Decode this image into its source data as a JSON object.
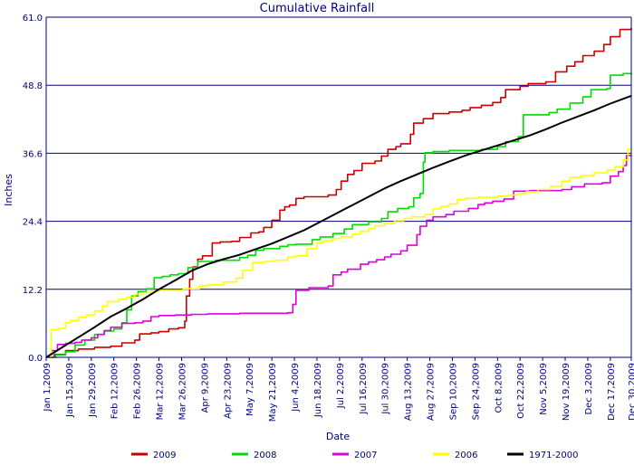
{
  "chart_data": {
    "type": "line",
    "title": "Cumulative Rainfall",
    "xlabel": "Date",
    "ylabel": "Inches",
    "ylim": [
      0,
      61
    ],
    "xlim": [
      0,
      363
    ],
    "y_ticks": [
      "0.0",
      "12.2",
      "24.4",
      "36.6",
      "48.8",
      "61.0"
    ],
    "x_ticks": [
      {
        "day": 0,
        "label": "Jan 1,2009"
      },
      {
        "day": 14,
        "label": "Jan 15,2009"
      },
      {
        "day": 28,
        "label": "Jan 29,2009"
      },
      {
        "day": 42,
        "label": "Feb 12,2009"
      },
      {
        "day": 56,
        "label": "Feb 26,2009"
      },
      {
        "day": 70,
        "label": "Mar 12,2009"
      },
      {
        "day": 84,
        "label": "Mar 26,2009"
      },
      {
        "day": 98,
        "label": "Apr 9,2009"
      },
      {
        "day": 112,
        "label": "Apr 23,2009"
      },
      {
        "day": 126,
        "label": "May 7,2009"
      },
      {
        "day": 140,
        "label": "May 21,2009"
      },
      {
        "day": 154,
        "label": "Jun 4,2009"
      },
      {
        "day": 168,
        "label": "Jun 18,2009"
      },
      {
        "day": 182,
        "label": "Jul 2,2009"
      },
      {
        "day": 196,
        "label": "Jul 16,2009"
      },
      {
        "day": 210,
        "label": "Jul 30,2009"
      },
      {
        "day": 224,
        "label": "Aug 13,2009"
      },
      {
        "day": 238,
        "label": "Aug 27,2009"
      },
      {
        "day": 252,
        "label": "Sep 10,2009"
      },
      {
        "day": 266,
        "label": "Sep 24,2009"
      },
      {
        "day": 280,
        "label": "Oct 8,2009"
      },
      {
        "day": 294,
        "label": "Oct 22,2009"
      },
      {
        "day": 308,
        "label": "Nov 5,2009"
      },
      {
        "day": 322,
        "label": "Nov 19,2009"
      },
      {
        "day": 336,
        "label": "Dec 3,2009"
      },
      {
        "day": 350,
        "label": "Dec 17,2009"
      },
      {
        "day": 363,
        "label": "Dec 30,2009"
      }
    ],
    "grid": "horizontal",
    "legend_position": "bottom",
    "series": [
      {
        "name": "2009",
        "color": "#cc0000",
        "step": true,
        "points": [
          [
            0,
            0
          ],
          [
            5,
            0.5
          ],
          [
            12,
            1.2
          ],
          [
            20,
            1.5
          ],
          [
            30,
            1.8
          ],
          [
            40,
            2.0
          ],
          [
            47,
            2.6
          ],
          [
            55,
            3.1
          ],
          [
            58,
            4.2
          ],
          [
            65,
            4.4
          ],
          [
            70,
            4.6
          ],
          [
            76,
            5.1
          ],
          [
            82,
            5.3
          ],
          [
            86,
            6.5
          ],
          [
            87,
            11
          ],
          [
            89,
            14
          ],
          [
            91,
            16.2
          ],
          [
            94,
            17.6
          ],
          [
            97,
            18.2
          ],
          [
            103,
            20.5
          ],
          [
            108,
            20.7
          ],
          [
            115,
            20.8
          ],
          [
            120,
            21.5
          ],
          [
            127,
            22.3
          ],
          [
            132,
            22.5
          ],
          [
            135,
            23.3
          ],
          [
            140,
            24.6
          ],
          [
            145,
            26.4
          ],
          [
            148,
            27
          ],
          [
            151,
            27.3
          ],
          [
            155,
            28.5
          ],
          [
            160,
            28.8
          ],
          [
            175,
            29.1
          ],
          [
            180,
            30.1
          ],
          [
            183,
            31.6
          ],
          [
            187,
            32.8
          ],
          [
            191,
            33.5
          ],
          [
            196,
            34.8
          ],
          [
            204,
            35.2
          ],
          [
            208,
            36.1
          ],
          [
            212,
            37.3
          ],
          [
            217,
            37.8
          ],
          [
            220,
            38.3
          ],
          [
            226,
            40
          ],
          [
            228,
            42
          ],
          [
            234,
            42.8
          ],
          [
            240,
            43.7
          ],
          [
            250,
            44
          ],
          [
            258,
            44.3
          ],
          [
            263,
            44.8
          ],
          [
            270,
            45.2
          ],
          [
            277,
            45.7
          ],
          [
            282,
            46.6
          ],
          [
            285,
            48
          ],
          [
            294,
            48.6
          ],
          [
            299,
            49.1
          ],
          [
            310,
            49.4
          ],
          [
            316,
            51.2
          ],
          [
            323,
            52.2
          ],
          [
            328,
            53
          ],
          [
            333,
            54.1
          ],
          [
            340,
            54.9
          ],
          [
            346,
            56.1
          ],
          [
            350,
            57.5
          ],
          [
            356,
            58.8
          ],
          [
            363,
            59.1
          ]
        ]
      },
      {
        "name": "2008",
        "color": "#00dd00",
        "step": true,
        "points": [
          [
            0,
            0
          ],
          [
            6,
            0.4
          ],
          [
            12,
            1
          ],
          [
            18,
            2.2
          ],
          [
            24,
            3.1
          ],
          [
            30,
            4.1
          ],
          [
            36,
            4.7
          ],
          [
            42,
            5.1
          ],
          [
            47,
            6.2
          ],
          [
            50,
            8.5
          ],
          [
            53,
            11
          ],
          [
            57,
            11.8
          ],
          [
            62,
            12.3
          ],
          [
            67,
            14.3
          ],
          [
            72,
            14.5
          ],
          [
            77,
            14.8
          ],
          [
            82,
            15
          ],
          [
            88,
            16.1
          ],
          [
            94,
            17.2
          ],
          [
            105,
            17.4
          ],
          [
            120,
            17.9
          ],
          [
            125,
            18.3
          ],
          [
            130,
            19.2
          ],
          [
            135,
            19.5
          ],
          [
            145,
            19.9
          ],
          [
            150,
            20.2
          ],
          [
            155,
            20.3
          ],
          [
            165,
            21.1
          ],
          [
            170,
            21.6
          ],
          [
            178,
            22.2
          ],
          [
            185,
            23
          ],
          [
            190,
            23.8
          ],
          [
            200,
            24.3
          ],
          [
            208,
            24.9
          ],
          [
            212,
            26.1
          ],
          [
            218,
            26.7
          ],
          [
            225,
            27
          ],
          [
            228,
            28.6
          ],
          [
            232,
            29.4
          ],
          [
            234,
            35
          ],
          [
            235,
            36.7
          ],
          [
            240,
            36.9
          ],
          [
            250,
            37.1
          ],
          [
            270,
            37.3
          ],
          [
            280,
            37.8
          ],
          [
            285,
            38.7
          ],
          [
            293,
            39.6
          ],
          [
            296,
            43.5
          ],
          [
            312,
            43.9
          ],
          [
            317,
            44.5
          ],
          [
            325,
            45.6
          ],
          [
            333,
            46.7
          ],
          [
            338,
            48
          ],
          [
            348,
            48.2
          ],
          [
            350,
            50.6
          ],
          [
            358,
            50.9
          ],
          [
            363,
            50.7
          ]
        ]
      },
      {
        "name": "2007",
        "color": "#dd00dd",
        "step": true,
        "points": [
          [
            0,
            0
          ],
          [
            3,
            1.2
          ],
          [
            7,
            2.3
          ],
          [
            12,
            2.5
          ],
          [
            18,
            2.7
          ],
          [
            22,
            3.1
          ],
          [
            28,
            3.5
          ],
          [
            32,
            4.1
          ],
          [
            36,
            4.8
          ],
          [
            40,
            5.4
          ],
          [
            47,
            6.1
          ],
          [
            55,
            6.2
          ],
          [
            60,
            6.5
          ],
          [
            65,
            7.3
          ],
          [
            70,
            7.5
          ],
          [
            80,
            7.6
          ],
          [
            90,
            7.7
          ],
          [
            100,
            7.8
          ],
          [
            120,
            7.9
          ],
          [
            150,
            8.0
          ],
          [
            153,
            9.5
          ],
          [
            155,
            12
          ],
          [
            163,
            12.5
          ],
          [
            175,
            12.8
          ],
          [
            178,
            14.8
          ],
          [
            183,
            15.3
          ],
          [
            187,
            15.8
          ],
          [
            195,
            16.7
          ],
          [
            200,
            17.1
          ],
          [
            205,
            17.5
          ],
          [
            210,
            18
          ],
          [
            214,
            18.5
          ],
          [
            220,
            19.1
          ],
          [
            224,
            20.1
          ],
          [
            230,
            22
          ],
          [
            232,
            23.5
          ],
          [
            236,
            24.6
          ],
          [
            240,
            25.2
          ],
          [
            248,
            25.6
          ],
          [
            253,
            26.2
          ],
          [
            262,
            26.7
          ],
          [
            268,
            27.4
          ],
          [
            272,
            27.7
          ],
          [
            277,
            28
          ],
          [
            284,
            28.4
          ],
          [
            290,
            29.8
          ],
          [
            300,
            29.9
          ],
          [
            320,
            30.1
          ],
          [
            326,
            30.6
          ],
          [
            334,
            31.1
          ],
          [
            345,
            31.3
          ],
          [
            350,
            32.5
          ],
          [
            355,
            33.3
          ],
          [
            358,
            34.4
          ],
          [
            360,
            36.2
          ],
          [
            363,
            36.1
          ]
        ]
      },
      {
        "name": "2006",
        "color": "#ffff00",
        "step": true,
        "points": [
          [
            0,
            0
          ],
          [
            3,
            5
          ],
          [
            8,
            5.2
          ],
          [
            12,
            6.2
          ],
          [
            15,
            6.6
          ],
          [
            20,
            7.2
          ],
          [
            25,
            7.6
          ],
          [
            30,
            8.3
          ],
          [
            35,
            9.2
          ],
          [
            38,
            10
          ],
          [
            45,
            10.4
          ],
          [
            50,
            10.8
          ],
          [
            55,
            11.3
          ],
          [
            60,
            11.6
          ],
          [
            65,
            11.9
          ],
          [
            70,
            12
          ],
          [
            85,
            12.3
          ],
          [
            95,
            12.8
          ],
          [
            100,
            13
          ],
          [
            110,
            13.5
          ],
          [
            118,
            14.2
          ],
          [
            122,
            15.6
          ],
          [
            128,
            17
          ],
          [
            135,
            17.2
          ],
          [
            142,
            17.4
          ],
          [
            150,
            18
          ],
          [
            155,
            18.2
          ],
          [
            162,
            19.5
          ],
          [
            168,
            20.5
          ],
          [
            172,
            20.9
          ],
          [
            178,
            21.3
          ],
          [
            183,
            21.6
          ],
          [
            190,
            22.1
          ],
          [
            195,
            22.6
          ],
          [
            200,
            23.1
          ],
          [
            204,
            23.6
          ],
          [
            210,
            24
          ],
          [
            216,
            24.5
          ],
          [
            222,
            24.9
          ],
          [
            227,
            25.2
          ],
          [
            235,
            25.6
          ],
          [
            240,
            26.6
          ],
          [
            245,
            27.1
          ],
          [
            250,
            27.5
          ],
          [
            255,
            28.3
          ],
          [
            260,
            28.5
          ],
          [
            268,
            28.7
          ],
          [
            280,
            28.9
          ],
          [
            287,
            29.1
          ],
          [
            293,
            29.4
          ],
          [
            298,
            29.7
          ],
          [
            305,
            30.1
          ],
          [
            313,
            30.7
          ],
          [
            320,
            31.6
          ],
          [
            325,
            32.3
          ],
          [
            332,
            32.6
          ],
          [
            340,
            33.1
          ],
          [
            348,
            33.6
          ],
          [
            353,
            34.2
          ],
          [
            358,
            35.4
          ],
          [
            361,
            37.4
          ],
          [
            363,
            37.4
          ]
        ]
      },
      {
        "name": "1971-2000",
        "color": "#000000",
        "step": false,
        "points": [
          [
            0,
            0
          ],
          [
            10,
            1.8
          ],
          [
            20,
            3.6
          ],
          [
            30,
            5.4
          ],
          [
            40,
            7.3
          ],
          [
            50,
            8.8
          ],
          [
            60,
            10.4
          ],
          [
            70,
            12.2
          ],
          [
            80,
            13.8
          ],
          [
            90,
            15.5
          ],
          [
            100,
            16.7
          ],
          [
            110,
            17.6
          ],
          [
            120,
            18.4
          ],
          [
            130,
            19.4
          ],
          [
            140,
            20.4
          ],
          [
            150,
            21.6
          ],
          [
            160,
            22.8
          ],
          [
            170,
            24.3
          ],
          [
            180,
            25.8
          ],
          [
            190,
            27.3
          ],
          [
            200,
            28.8
          ],
          [
            210,
            30.3
          ],
          [
            220,
            31.6
          ],
          [
            230,
            32.8
          ],
          [
            240,
            34
          ],
          [
            250,
            35.1
          ],
          [
            260,
            36.2
          ],
          [
            270,
            37.1
          ],
          [
            280,
            38
          ],
          [
            290,
            38.9
          ],
          [
            300,
            39.8
          ],
          [
            310,
            40.9
          ],
          [
            320,
            42.1
          ],
          [
            330,
            43.2
          ],
          [
            340,
            44.3
          ],
          [
            350,
            45.5
          ],
          [
            363,
            46.9
          ]
        ]
      }
    ]
  }
}
